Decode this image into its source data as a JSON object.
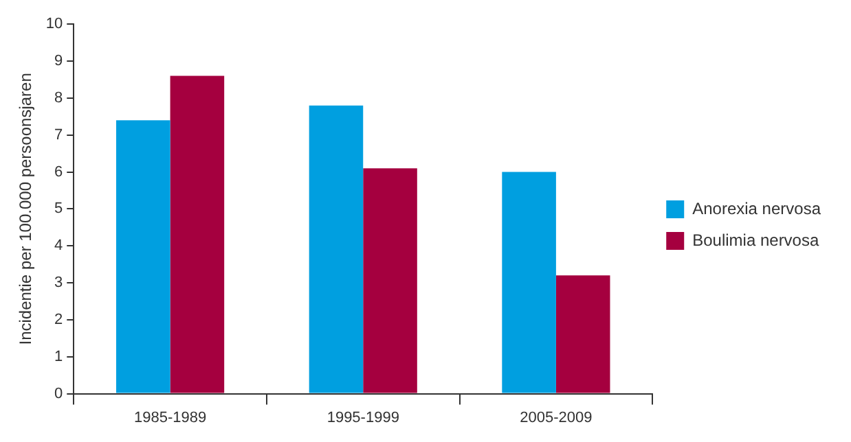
{
  "chart_data": {
    "type": "bar",
    "ylabel": "Incidentie per 100.000 persoonsjaren",
    "categories": [
      "1985-1989",
      "1995-1999",
      "2005-2009"
    ],
    "series": [
      {
        "name": "Anorexia nervosa",
        "color": "#009fe0",
        "values": [
          7.4,
          7.8,
          6.0
        ]
      },
      {
        "name": "Boulimia nervosa",
        "color": "#a5003f",
        "values": [
          8.6,
          6.1,
          3.2
        ]
      }
    ],
    "ylim": [
      0,
      10
    ],
    "yticks": [
      0,
      1,
      2,
      3,
      4,
      5,
      6,
      7,
      8,
      9,
      10
    ],
    "grid": false,
    "legend": "right"
  }
}
